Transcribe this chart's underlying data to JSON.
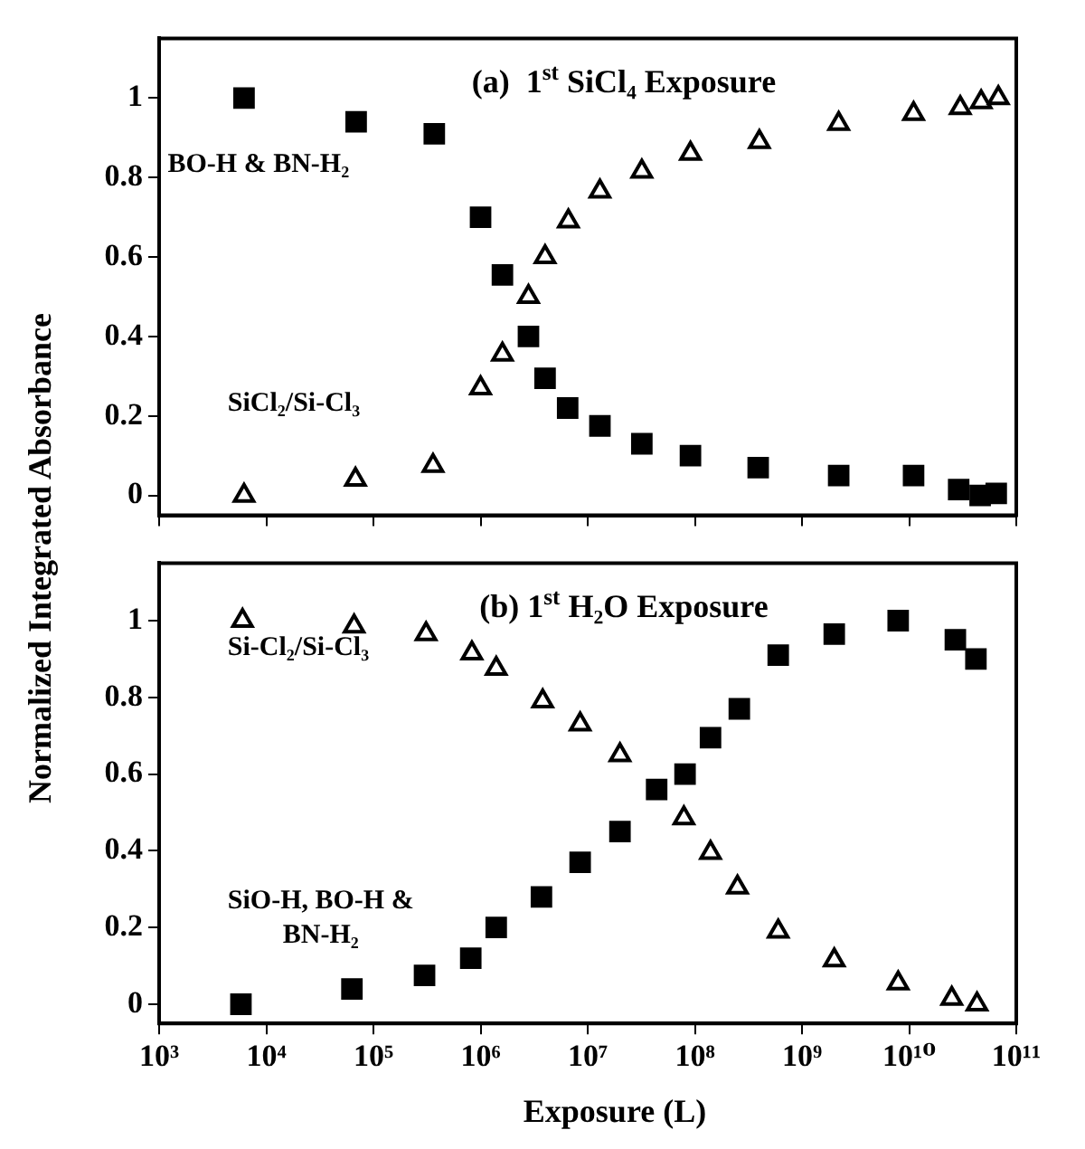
{
  "chart_data": [
    {
      "type": "scatter",
      "title": "(a)  1$^{st}$ SiCl₄ Exposure",
      "ylabel": "Normalized Integrated Absorbance",
      "log": "x",
      "grid": false,
      "legend": false,
      "tick_labels": "y",
      "xlim": [
        1000,
        100000000000
      ],
      "xticks": [
        {
          "value": 1000,
          "label": null
        },
        {
          "value": 10000,
          "label": null
        },
        {
          "value": 100000,
          "label": null
        },
        {
          "value": 1000000,
          "label": null
        },
        {
          "value": 10000000,
          "label": null
        },
        {
          "value": 100000000,
          "label": null
        },
        {
          "value": 1000000000,
          "label": null
        },
        {
          "value": 10000000000,
          "label": null
        },
        {
          "value": 100000000000,
          "label": null
        }
      ],
      "ylim": [
        -0.05,
        1.15
      ],
      "yticks": [
        0,
        0.2,
        0.4,
        0.6,
        0.8,
        1
      ],
      "series": [
        {
          "name": "BO-H & BN-H₂",
          "color": "#000000",
          "marker": "square",
          "x": [
            6200,
            69000,
            370000,
            1000000,
            1600000,
            2800000,
            4000000,
            6500000,
            13000000,
            32000000,
            91000000,
            390000000,
            2200000000,
            11000000000,
            29000000000,
            46000000000,
            65000000000
          ],
          "values": [
            1.0,
            0.94,
            0.91,
            0.7,
            0.555,
            0.4,
            0.295,
            0.22,
            0.175,
            0.13,
            0.1,
            0.07,
            0.05,
            0.05,
            0.015,
            0.0,
            0.005
          ]
        },
        {
          "name": "SiCl₂/Si-Cl₃",
          "color": "#000000",
          "marker": "triangle",
          "x": [
            6200,
            68000,
            360000,
            1000000,
            1600000,
            2800000,
            4000000,
            6600000,
            13000000,
            32000000,
            91000000,
            400000000,
            2200000000,
            11000000000,
            30000000000,
            47000000000,
            68000000000
          ],
          "values": [
            0.0,
            0.04,
            0.075,
            0.27,
            0.355,
            0.5,
            0.6,
            0.69,
            0.765,
            0.815,
            0.86,
            0.89,
            0.935,
            0.96,
            0.975,
            0.99,
            1.0
          ]
        }
      ]
    },
    {
      "type": "scatter",
      "title": "(b) 1$^{st}$ H₂O Exposure",
      "xlabel": "Exposure (L)",
      "log": "x",
      "grid": false,
      "legend": false,
      "xlim": [
        1000,
        100000000000
      ],
      "xticks": [
        {
          "value": 1000,
          "label": "10³"
        },
        {
          "value": 10000,
          "label": "10⁴"
        },
        {
          "value": 100000,
          "label": "10⁵"
        },
        {
          "value": 1000000,
          "label": "10⁶"
        },
        {
          "value": 10000000,
          "label": "10⁷"
        },
        {
          "value": 100000000,
          "label": "10⁸"
        },
        {
          "value": 1000000000,
          "label": "10⁹"
        },
        {
          "value": 10000000000,
          "label": "10¹⁰"
        },
        {
          "value": 100000000000,
          "label": "10¹¹"
        }
      ],
      "ylim": [
        -0.05,
        1.15
      ],
      "yticks": [
        0,
        0.2,
        0.4,
        0.6,
        0.8,
        1
      ],
      "series": [
        {
          "name": "Si-Cl₂/Si-Cl₃",
          "color": "#000000",
          "marker": "triangle",
          "x": [
            6000,
            66000,
            310000,
            830000,
            1400000,
            3800000,
            8500000,
            20000000,
            79000000,
            140000000,
            250000000,
            600000000,
            2000000000,
            7900000000,
            25000000000,
            43000000000
          ],
          "values": [
            1.0,
            0.985,
            0.965,
            0.915,
            0.875,
            0.79,
            0.73,
            0.65,
            0.485,
            0.395,
            0.305,
            0.19,
            0.115,
            0.055,
            0.015,
            0.0
          ]
        },
        {
          "name": "SiO-H, BO-H & BN-H₂",
          "color": "#000000",
          "marker": "square",
          "x": [
            5800,
            63000,
            300000,
            810000,
            1400000,
            3700000,
            8500000,
            20000000,
            44000000,
            81000000,
            140000000,
            260000000,
            600000000,
            2000000000,
            7900000000,
            27000000000,
            42000000000
          ],
          "values": [
            0.0,
            0.04,
            0.075,
            0.12,
            0.2,
            0.28,
            0.37,
            0.45,
            0.56,
            0.6,
            0.695,
            0.77,
            0.91,
            0.965,
            1.0,
            0.95,
            0.9
          ]
        }
      ]
    }
  ]
}
